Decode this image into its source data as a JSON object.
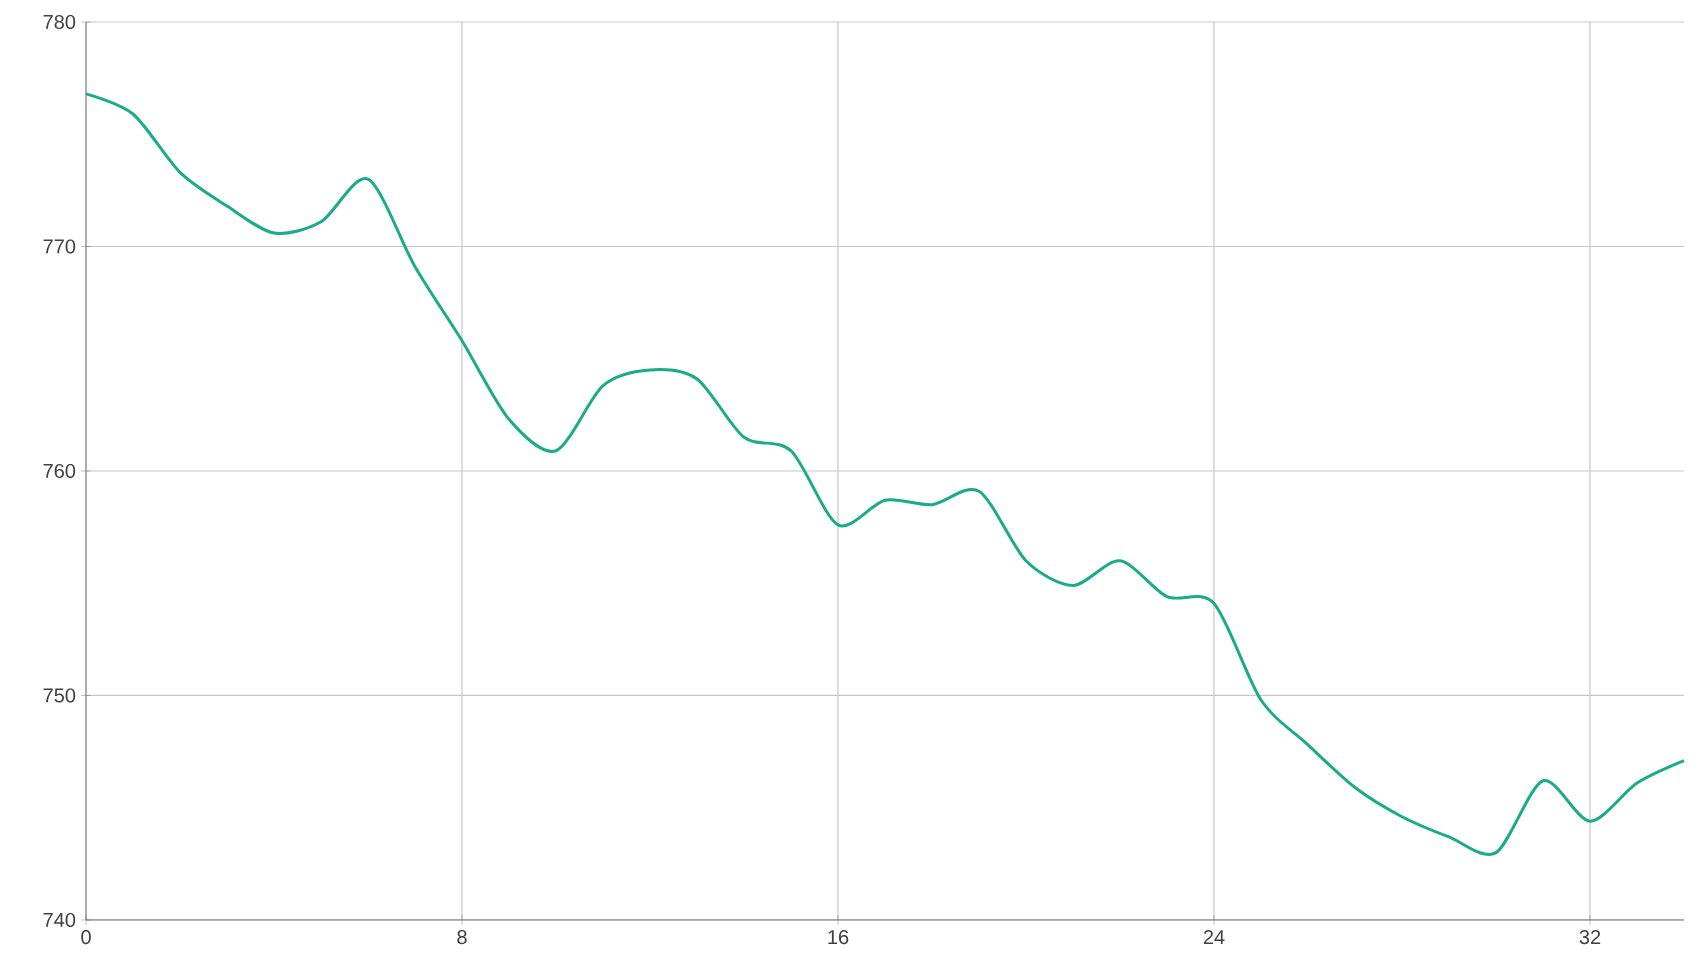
{
  "chart_data": {
    "type": "line",
    "x": [
      0,
      1,
      2,
      3,
      4,
      5,
      6,
      7,
      8,
      9,
      10,
      11,
      12,
      13,
      14,
      15,
      16,
      17,
      18,
      19,
      20,
      21,
      22,
      23,
      24,
      25,
      26,
      27,
      28,
      29,
      30,
      31,
      32,
      33,
      34
    ],
    "series": [
      {
        "color": "#1aab8a",
        "values": [
          776.8,
          775.9,
          773.3,
          771.8,
          770.6,
          771.1,
          773.0,
          769.1,
          765.8,
          762.3,
          760.9,
          763.8,
          764.5,
          764.1,
          761.5,
          760.9,
          757.6,
          758.7,
          758.5,
          759.1,
          756.0,
          754.9,
          756.0,
          754.4,
          754.1,
          749.8,
          747.8,
          745.9,
          744.6,
          743.7,
          743.0,
          746.2,
          744.4,
          746.1,
          747.1
        ]
      }
    ],
    "xlim": [
      0,
      34
    ],
    "xticks": [
      0,
      8,
      16,
      24,
      32
    ],
    "ylim": [
      740,
      780
    ],
    "yticks": [
      740,
      750,
      760,
      770,
      780
    ],
    "grid": true,
    "marker": "none",
    "line_style": "solid"
  }
}
